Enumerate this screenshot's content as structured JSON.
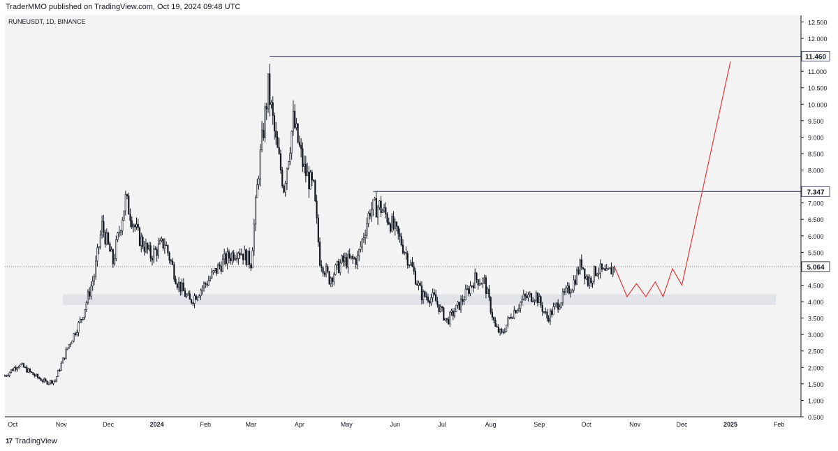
{
  "header": {
    "published": "TraderMMO published on TradingView.com, Oct 19, 2024 09:48 UTC"
  },
  "footer": {
    "brand": "TradingView",
    "logo": "17"
  },
  "colors": {
    "background": "#f3f3f3",
    "candle_up": "#ffffff",
    "candle_down": "#131722",
    "level_line": "#2a2e5a",
    "projection": "#e03a3a",
    "support_zone": "#e1e3e8",
    "label_bg": "#ffffff"
  },
  "chart_data": {
    "type": "candlestick",
    "symbol_label": "RUNEUSDT, 1D, BINANCE",
    "y_scale": "linear",
    "ylim": [
      0.5,
      12.7
    ],
    "y_ticks": [
      "12.500",
      "12.000",
      "11.500",
      "11.000",
      "10.500",
      "10.000",
      "9.500",
      "9.000",
      "8.500",
      "8.000",
      "7.500",
      "7.000",
      "6.500",
      "6.000",
      "5.500",
      "5.000",
      "4.500",
      "4.000",
      "3.500",
      "3.000",
      "2.500",
      "2.000",
      "1.500",
      "1.000",
      "0.500"
    ],
    "x_ticks": [
      "Oct",
      "Nov",
      "Dec",
      "2024",
      "Feb",
      "Mar",
      "Apr",
      "May",
      "Jun",
      "Jul",
      "Aug",
      "Sep",
      "Oct",
      "Nov",
      "Dec",
      "2025",
      "Feb"
    ],
    "x_range": [
      "2023-09-26",
      "2025-02-15"
    ],
    "price_path": [
      [
        "2023-09-26",
        1.75
      ],
      [
        "2023-10-05",
        2.1
      ],
      [
        "2023-10-15",
        1.75
      ],
      [
        "2023-10-22",
        1.55
      ],
      [
        "2023-10-28",
        1.6
      ],
      [
        "2023-11-05",
        2.6
      ],
      [
        "2023-11-14",
        3.5
      ],
      [
        "2023-11-22",
        4.8
      ],
      [
        "2023-11-27",
        6.3
      ],
      [
        "2023-12-04",
        5.2
      ],
      [
        "2023-12-12",
        7.1
      ],
      [
        "2023-12-20",
        6.0
      ],
      [
        "2023-12-28",
        5.4
      ],
      [
        "2024-01-06",
        5.8
      ],
      [
        "2024-01-14",
        4.6
      ],
      [
        "2024-01-22",
        4.0
      ],
      [
        "2024-02-02",
        4.6
      ],
      [
        "2024-02-12",
        5.2
      ],
      [
        "2024-02-22",
        5.6
      ],
      [
        "2024-03-01",
        5.2
      ],
      [
        "2024-03-06",
        8.0
      ],
      [
        "2024-03-12",
        10.5
      ],
      [
        "2024-03-17",
        8.8
      ],
      [
        "2024-03-22",
        7.5
      ],
      [
        "2024-03-28",
        9.5
      ],
      [
        "2024-04-04",
        8.0
      ],
      [
        "2024-04-10",
        7.4
      ],
      [
        "2024-04-14",
        5.3
      ],
      [
        "2024-04-20",
        4.7
      ],
      [
        "2024-04-28",
        5.2
      ],
      [
        "2024-05-08",
        5.3
      ],
      [
        "2024-05-16",
        6.8
      ],
      [
        "2024-05-22",
        6.9
      ],
      [
        "2024-05-28",
        6.5
      ],
      [
        "2024-06-05",
        5.8
      ],
      [
        "2024-06-12",
        5.0
      ],
      [
        "2024-06-18",
        4.2
      ],
      [
        "2024-06-26",
        4.1
      ],
      [
        "2024-07-04",
        3.4
      ],
      [
        "2024-07-12",
        3.9
      ],
      [
        "2024-07-22",
        4.7
      ],
      [
        "2024-07-28",
        4.6
      ],
      [
        "2024-08-04",
        3.2
      ],
      [
        "2024-08-08",
        3.0
      ],
      [
        "2024-08-14",
        3.6
      ],
      [
        "2024-08-22",
        4.1
      ],
      [
        "2024-08-30",
        4.2
      ],
      [
        "2024-09-06",
        3.5
      ],
      [
        "2024-09-14",
        4.0
      ],
      [
        "2024-09-22",
        4.5
      ],
      [
        "2024-09-28",
        5.2
      ],
      [
        "2024-10-02",
        4.6
      ],
      [
        "2024-10-08",
        5.0
      ],
      [
        "2024-10-14",
        4.8
      ],
      [
        "2024-10-19",
        5.064
      ]
    ],
    "resistance_levels": [
      {
        "value": 11.46,
        "label": "11.460",
        "from": "2024-03-13"
      },
      {
        "value": 7.347,
        "label": "7.347",
        "from": "2024-05-18"
      }
    ],
    "current_price": {
      "value": 5.064,
      "label": "5.064"
    },
    "support_zone": {
      "from": "2023-11-02",
      "to": "2025-01-30",
      "low": 3.9,
      "high": 4.22
    },
    "projection": [
      [
        "2024-10-19",
        5.06
      ],
      [
        "2024-10-27",
        4.15
      ],
      [
        "2024-11-02",
        4.55
      ],
      [
        "2024-11-08",
        4.15
      ],
      [
        "2024-11-14",
        4.6
      ],
      [
        "2024-11-19",
        4.15
      ],
      [
        "2024-11-25",
        5.0
      ],
      [
        "2024-12-01",
        4.5
      ],
      [
        "2025-01-01",
        11.3
      ]
    ]
  }
}
